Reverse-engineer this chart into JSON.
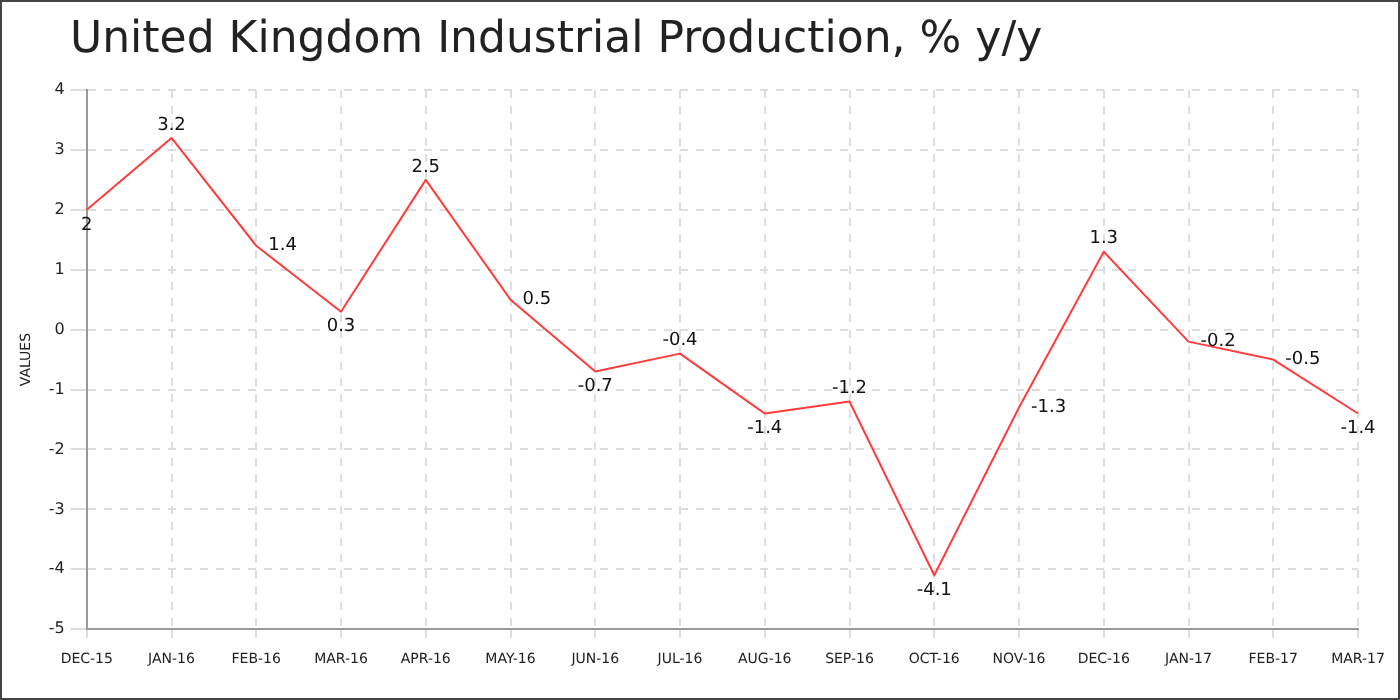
{
  "chart_data": {
    "type": "line",
    "title": "United Kingdom Industrial Production, % y/y",
    "ylabel": "VALUES",
    "categories": [
      "DEC-15",
      "JAN-16",
      "FEB-16",
      "MAR-16",
      "APR-16",
      "MAY-16",
      "JUN-16",
      "JUL-16",
      "AUG-16",
      "SEP-16",
      "OCT-16",
      "NOV-16",
      "DEC-16",
      "JAN-17",
      "FEB-17",
      "MAR-17"
    ],
    "series": [
      {
        "color": "#ff3b3b",
        "values": [
          2,
          3.2,
          1.4,
          0.3,
          2.5,
          0.5,
          -0.7,
          -0.4,
          -1.4,
          -1.2,
          -4.1,
          -1.3,
          1.3,
          -0.2,
          -0.5,
          -1.4
        ]
      }
    ],
    "ylim": [
      -5,
      4
    ],
    "yticks": [
      -5,
      -4,
      -3,
      -2,
      -1,
      0,
      1,
      2,
      3,
      4
    ],
    "grid": true,
    "data_labels": true,
    "marker": "none",
    "line_style": "solid",
    "legend": false
  }
}
